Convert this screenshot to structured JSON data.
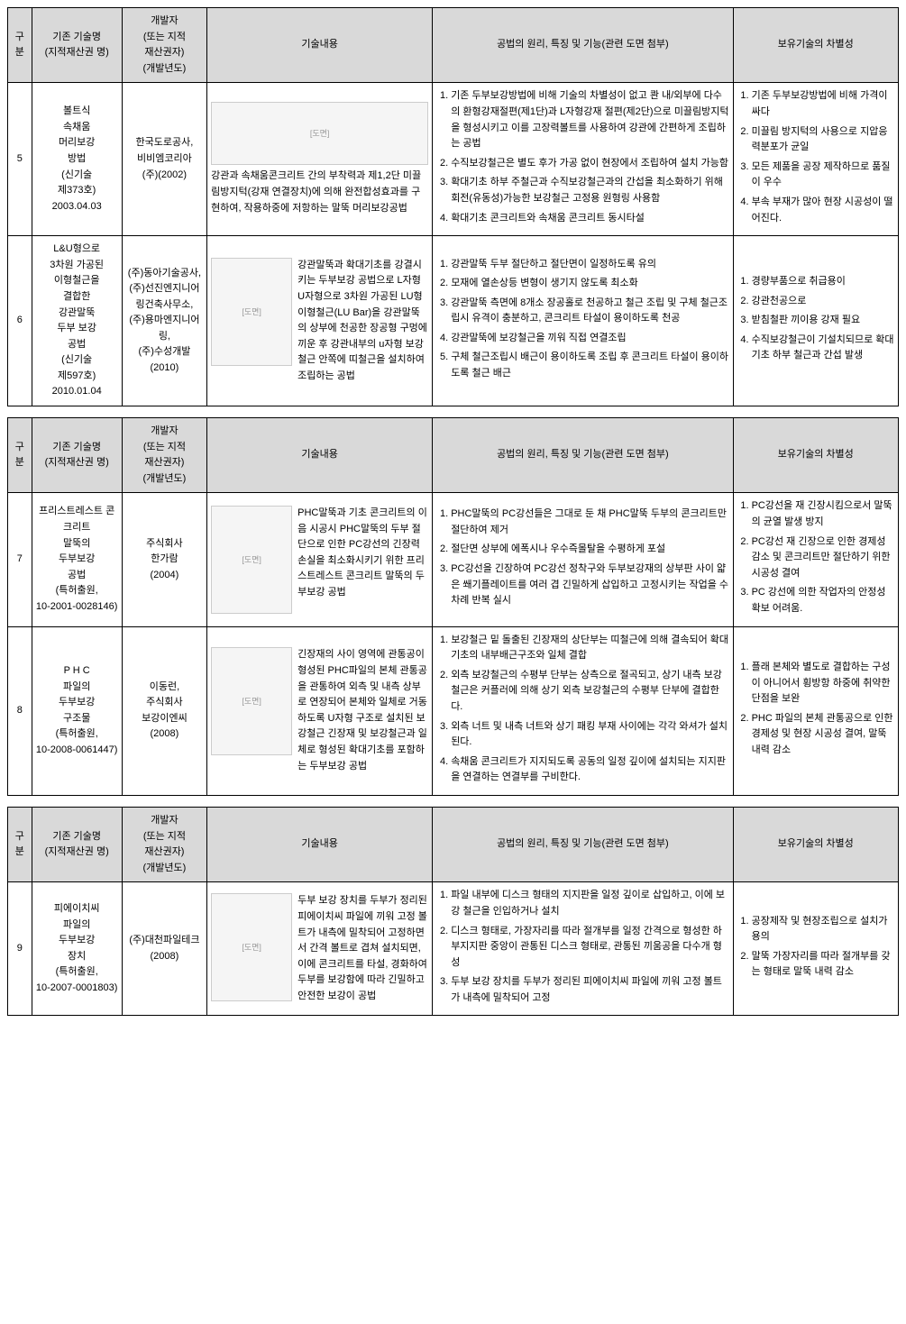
{
  "headers": {
    "num": "구분",
    "name": "기존 기술명\n(지적재산권 명)",
    "dev": "개발자\n(또는 지적\n재산권자)\n(개발년도)",
    "desc": "기술내용",
    "prin": "공법의 원리, 특징 및 기능(관련 도면 첨부)",
    "diff": "보유기술의 차별성"
  },
  "rows": [
    {
      "num": "5",
      "name": "볼트식\n속채움\n머리보강\n방법\n(신기술\n제373호)\n2003.04.03",
      "dev": "한국도로공사,\n비비엠코리아\n(주)(2002)",
      "desc_layout": "wide",
      "desc": "강관과 속채움콘크리트 간의 부착력과 제1,2단 미끌림방지턱(강재 연결장치)에 의해 완전합성효과를 구현하여, 작용하중에 저항하는 말뚝 머리보강공법",
      "prin": [
        "기존 두부보강방법에 비해 기술의 차별성이 없고 콴 내/외부에 다수의 환형강재절편(제1단)과 L자형강재 절편(제2단)으로 미끌림방지턱을 형성시키고 이를 고장력볼트를 사용하여 강관에 간편하게 조립하는 공법",
        "수직보강철근은 별도 후가 가공 없이 현장에서 조립하여 설치 가능함",
        "확대기초 하부 주철근과 수직보강철근과의 간섭을 최소화하기 위해 회전(유동성)가능한 보강철근 고정용 원형링 사용함",
        "확대기초 콘크리트와 속채움 콘크리트 동시타설"
      ],
      "diff": [
        "기존 두부보강방법에 비해 가격이 싸다",
        "미끌림 방지턱의 사용으로 지압응력분포가 균일",
        "모든 제품을 공장 제작하므로 품질이 우수",
        "부속 부재가 많아 현장 시공성이 떨어진다."
      ]
    },
    {
      "num": "6",
      "name": "L&U형으로\n3차원 가공된\n이형철근을\n결합한\n강관말뚝\n두부 보강\n공법\n(신기술\n제597호)\n2010.01.04",
      "dev": "(주)동아기술공사,\n(주)선진엔지니어링건축사무소,\n(주)용마엔지니어링,\n(주)수성개발\n(2010)",
      "desc_layout": "side",
      "desc": "강관말뚝과 확대기초를 강결시키는 두부보강 공법으로 L자형 U자형으로 3차원 가공된 LU형 이형철근(LU Bar)을 강관말뚝의 상부에 천공한 장공형 구멍에 끼운 후 강관내부의 u자형 보강철근 안쪽에 띠철근을 설치하여 조립하는 공법",
      "prin": [
        "강관말뚝 두부 절단하고 절단면이 일정하도록 유의",
        "모재에 열손상등 변형이 생기지 않도록 최소화",
        "강관말뚝 측면에 8개소 장공홀로 천공하고 철근 조립 및 구체 철근조립시 유격이 충분하고, 콘크리트 타설이 용이하도록 천공",
        "강관말뚝에 보강철근을 끼워 직접 연결조립",
        "구체 철근조립시 배근이 용이하도록 조립 후 콘크리트 타설이 용이하도록 철근 배근"
      ],
      "diff": [
        "경량부품으로 취급용이",
        "강관천공으로",
        "받침철판 끼이용 강재 필요",
        "수직보강철근이 기설치되므로 확대기초 하부 철근과 간섭 발생"
      ]
    },
    {
      "num": "7",
      "name": "프리스트레스트 콘크리트\n말뚝의\n두부보강\n공법\n(특허출원,\n10-2001-0028146)",
      "dev": "주식회사\n한가람\n(2004)",
      "desc_layout": "side",
      "desc": "PHC말뚝과 기초 콘크리트의 이음 시공시 PHC말뚝의 두부 절단으로 인한 PC강선의 긴장력 손실을 최소화시키기 위한 프리스트레스트 콘크리트 말뚝의 두부보강 공법",
      "prin": [
        "PHC말뚝의 PC강선들은 그대로 둔 채 PHC말뚝 두부의 콘크리트만 절단하여 제거",
        "절단면 상부에 에폭시나 우수즉몰탈을 수평하게 포설",
        "PC강선을 긴장하여 PC강선 정착구와 두부보강재의 상부판 사이 얇은 쐐기플레이트를 여러 겹 긴밀하게 삽입하고 고정시키는 작업을 수차례 반복 실시"
      ],
      "diff": [
        "PC강선을 재 긴장시킴으로서 말뚝의 균열 발생 방지",
        "PC강선 재 긴장으로 인한 경제성 감소 및 콘크리트만 절단하기 위한 시공성 결여",
        "PC 강선에 의한 작업자의 안정성 확보 어려움."
      ]
    },
    {
      "num": "8",
      "name": "P H C\n파일의\n두부보강\n구조물\n(특허출원,\n10-2008-0061447)",
      "dev": "이동런,\n주식회사\n보강이엔씨\n(2008)",
      "desc_layout": "side",
      "desc": "긴장재의 사이 영역에 관통공이 형성된 PHC파일의 본체 관통공을 관통하여 외측 및 내측 상부로 연장되어 본체와 일체로 거동하도록 U자형 구조로 설치된 보강철근 긴장재 및 보강철근과 일체로 형성된 확대기초를 포함하는 두부보강 공법",
      "prin": [
        "보강철근 밑 돌출된 긴장재의 상단부는 띠철근에 의해 결속되어 확대기초의 내부배근구조와 일체 결합",
        "외측 보강철근의 수평부 단부는 상측으로 절곡되고, 상기 내측 보강철근은 커플러에 의해 상기 외측 보강철근의 수평부 단부에 결합한다.",
        "외측 너트 및 내측 너트와 상기 패킹 부재 사이에는 각각 와셔가 설치된다.",
        "속채움 콘크리트가 지지되도록 공동의 일정 깊이에 설치되는 지지판을 연결하는 연결부를 구비한다."
      ],
      "diff": [
        "플래 본체와 별도로 결합하는 구성이 아니어서 횡방항 하중에 취약한 단점을 보완",
        "PHC 파일의 본체 관통공으로 인한 경제성 및 현장 시공성 결여, 말뚝 내력 감소"
      ]
    },
    {
      "num": "9",
      "name": "피에이치씨\n파일의\n두부보강\n장치\n(특허출원,\n10-2007-0001803)",
      "dev": "(주)대천파일테크\n(2008)",
      "desc_layout": "side",
      "desc": "두부 보강 장치를 두부가 정리된 피에이치씨 파일에 끼워 고정 볼트가 내측에 밀착되어 고정하면서 간격 볼트로 겹쳐 설치되면, 이에 콘크리트를 타설, 경화하여 두부를 보강함에 따라 긴밀하고 안전한 보강이 공법",
      "prin": [
        "파일 내부에 디스크 형태의 지지판을 일정 깊이로 삽입하고, 이에 보강 철근을 인입하거나 설치",
        "디스크 형태로, 가장자리를 따라 절개부를 일정 간격으로 형성한 하부지지판 중앙이 관통된 디스크 형태로, 관통된 끼움공을 다수개 형성",
        "두부 보강 장치를 두부가 정리된 피에이치씨 파일에 끼워 고정 볼트가 내측에 밀착되어 고정"
      ],
      "diff": [
        "공장제작 및 현장조립으로 설치가 용의",
        "말뚝 가장자리를 따라 절개부를 갖는 형태로 말뚝 내력 감소"
      ]
    }
  ]
}
